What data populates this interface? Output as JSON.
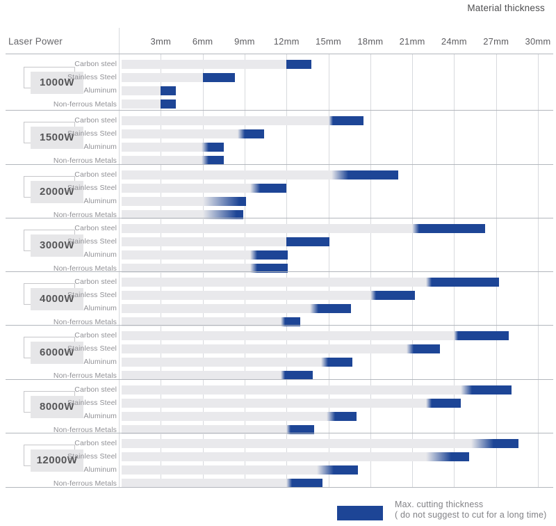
{
  "header": {
    "laser_power": "Laser Power",
    "material_thickness": "Material thickness"
  },
  "axis": {
    "ticks": [
      {
        "mm": 3,
        "label": "3mm"
      },
      {
        "mm": 6,
        "label": "6mm"
      },
      {
        "mm": 9,
        "label": "9mm"
      },
      {
        "mm": 12,
        "label": "12mm"
      },
      {
        "mm": 15,
        "label": "15mm"
      },
      {
        "mm": 18,
        "label": "18mm"
      },
      {
        "mm": 21,
        "label": "21mm"
      },
      {
        "mm": 24,
        "label": "24mm"
      },
      {
        "mm": 27,
        "label": "27mm"
      },
      {
        "mm": 30,
        "label": "30mm"
      }
    ]
  },
  "legend": {
    "title": "Max. cutting thickness",
    "subtitle": "( do not suggest to cut for a long time)"
  },
  "colors": {
    "bar_blue": "#1d4596",
    "bar_track": "#e9e9ec",
    "grid_vertical": "#d7d9dd",
    "grid_horizontal": "#b2b6bc",
    "text_muted": "#909095",
    "text_dark": "#4e4e50"
  },
  "chart_data": {
    "type": "bar",
    "orientation": "horizontal-range",
    "title": "Material thickness",
    "x_unit": "mm",
    "xlim": [
      0,
      30
    ],
    "x_ticks_mm": [
      3,
      6,
      9,
      12,
      15,
      18,
      21,
      24,
      27,
      30
    ],
    "grid": true,
    "legend_position": "bottom-right",
    "legend_note": "Max. cutting thickness ( do not suggest to cut for a long time)",
    "materials": [
      "Carbon steel",
      "Stainless Steel",
      "Aluminum",
      "Non-ferrous Metals"
    ],
    "series_meaning": {
      "gray_track": "suggested cutting range (0 to suggested_mm)",
      "blue_segment": "max cutting thickness range (suggested_mm to max_mm)"
    },
    "groups": [
      {
        "power": "1000W",
        "bars": [
          {
            "material": "Carbon steel",
            "suggested_mm": 12,
            "max_mm": 13.8,
            "fade_mm": 0
          },
          {
            "material": "Stainless Steel",
            "suggested_mm": 6,
            "max_mm": 8.3,
            "fade_mm": 0
          },
          {
            "material": "Aluminum",
            "suggested_mm": 3,
            "max_mm": 4.1,
            "fade_mm": 0
          },
          {
            "material": "Non-ferrous Metals",
            "suggested_mm": 3,
            "max_mm": 4.1,
            "fade_mm": 0
          }
        ]
      },
      {
        "power": "1500W",
        "bars": [
          {
            "material": "Carbon steel",
            "suggested_mm": 15,
            "max_mm": 17.5,
            "fade_mm": 0.3
          },
          {
            "material": "Stainless Steel",
            "suggested_mm": 8.5,
            "max_mm": 10.4,
            "fade_mm": 0.5
          },
          {
            "material": "Aluminum",
            "suggested_mm": 5.9,
            "max_mm": 7.5,
            "fade_mm": 0.5
          },
          {
            "material": "Non-ferrous Metals",
            "suggested_mm": 5.9,
            "max_mm": 7.5,
            "fade_mm": 0.5
          }
        ]
      },
      {
        "power": "2000W",
        "bars": [
          {
            "material": "Carbon steel",
            "suggested_mm": 15.2,
            "max_mm": 20,
            "fade_mm": 1.2
          },
          {
            "material": "Stainless Steel",
            "suggested_mm": 9.4,
            "max_mm": 12,
            "fade_mm": 0.7
          },
          {
            "material": "Aluminum",
            "suggested_mm": 6,
            "max_mm": 9.1,
            "fade_mm": 2.6
          },
          {
            "material": "Non-ferrous Metals",
            "suggested_mm": 6,
            "max_mm": 8.9,
            "fade_mm": 2.4
          }
        ]
      },
      {
        "power": "3000W",
        "bars": [
          {
            "material": "Carbon steel",
            "suggested_mm": 21,
            "max_mm": 26.2,
            "fade_mm": 0.5
          },
          {
            "material": "Stainless Steel",
            "suggested_mm": 12,
            "max_mm": 15.1,
            "fade_mm": 0
          },
          {
            "material": "Aluminum",
            "suggested_mm": 9.4,
            "max_mm": 12.1,
            "fade_mm": 0.5
          },
          {
            "material": "Non-ferrous Metals",
            "suggested_mm": 9.4,
            "max_mm": 12.1,
            "fade_mm": 0.5
          }
        ]
      },
      {
        "power": "4000W",
        "bars": [
          {
            "material": "Carbon steel",
            "suggested_mm": 22,
            "max_mm": 27.2,
            "fade_mm": 0.4
          },
          {
            "material": "Stainless Steel",
            "suggested_mm": 18,
            "max_mm": 21.2,
            "fade_mm": 0.4
          },
          {
            "material": "Aluminum",
            "suggested_mm": 13.7,
            "max_mm": 16.6,
            "fade_mm": 0.6
          },
          {
            "material": "Non-ferrous Metals",
            "suggested_mm": 11.6,
            "max_mm": 13,
            "fade_mm": 0.3
          }
        ]
      },
      {
        "power": "6000W",
        "bars": [
          {
            "material": "Carbon steel",
            "suggested_mm": 24,
            "max_mm": 27.9,
            "fade_mm": 0.3
          },
          {
            "material": "Stainless Steel",
            "suggested_mm": 20.6,
            "max_mm": 23,
            "fade_mm": 0.5
          },
          {
            "material": "Aluminum",
            "suggested_mm": 14.5,
            "max_mm": 16.7,
            "fade_mm": 0.5
          },
          {
            "material": "Non-ferrous Metals",
            "suggested_mm": 11.6,
            "max_mm": 13.9,
            "fade_mm": 0.3
          }
        ]
      },
      {
        "power": "8000W",
        "bars": [
          {
            "material": "Carbon steel",
            "suggested_mm": 24.5,
            "max_mm": 28.1,
            "fade_mm": 0.8
          },
          {
            "material": "Stainless Steel",
            "suggested_mm": 22,
            "max_mm": 24.5,
            "fade_mm": 0.4
          },
          {
            "material": "Aluminum",
            "suggested_mm": 14.9,
            "max_mm": 17,
            "fade_mm": 0.6
          },
          {
            "material": "Non-ferrous Metals",
            "suggested_mm": 12,
            "max_mm": 14,
            "fade_mm": 0.3
          }
        ]
      },
      {
        "power": "12000W",
        "bars": [
          {
            "material": "Carbon steel",
            "suggested_mm": 25.2,
            "max_mm": 28.6,
            "fade_mm": 1.6
          },
          {
            "material": "Stainless Steel",
            "suggested_mm": 22,
            "max_mm": 25.1,
            "fade_mm": 1.8
          },
          {
            "material": "Aluminum",
            "suggested_mm": 14.2,
            "max_mm": 17.1,
            "fade_mm": 1.2
          },
          {
            "material": "Non-ferrous Metals",
            "suggested_mm": 12,
            "max_mm": 14.6,
            "fade_mm": 0.4
          }
        ]
      }
    ]
  }
}
